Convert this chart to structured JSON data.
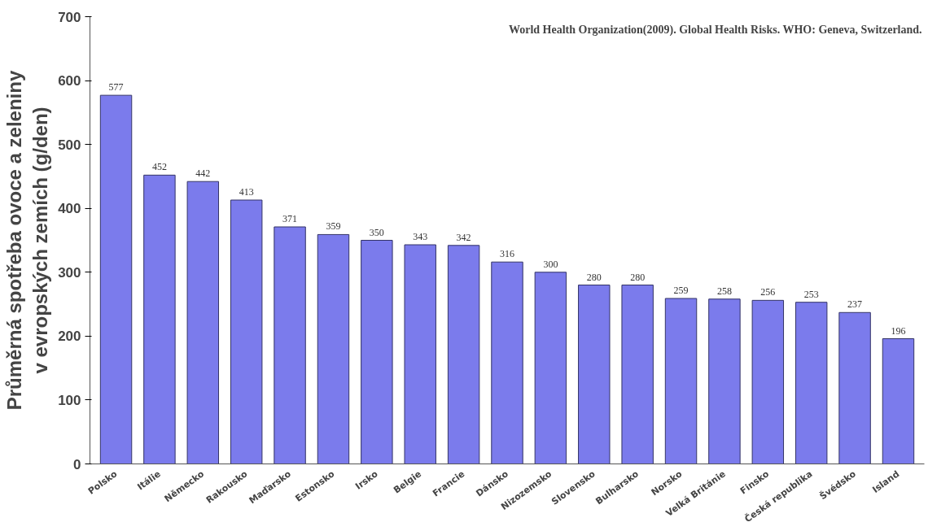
{
  "chart_data": {
    "type": "bar",
    "ylabel": "Průměrná spotřeba ovoce a zeleniny\nv evropských zemích (g/den)",
    "categories": [
      "Polsko",
      "Itálie",
      "Německo",
      "Rakousko",
      "Maďarsko",
      "Estonsko",
      "Irsko",
      "Belgie",
      "Francie",
      "Dánsko",
      "Nizozemsko",
      "Slovensko",
      "Bulharsko",
      "Norsko",
      "Velká Británie",
      "Finsko",
      "Česká republika",
      "Švédsko",
      "Island"
    ],
    "values": [
      577,
      452,
      442,
      413,
      371,
      359,
      350,
      343,
      342,
      316,
      300,
      280,
      280,
      259,
      258,
      256,
      253,
      237,
      196
    ],
    "color": "#7b7bec",
    "ylim": [
      0,
      700
    ],
    "yticks": [
      0,
      100,
      200,
      300,
      400,
      500,
      600,
      700
    ],
    "grid": false,
    "data_labels": true,
    "annotations": [
      "World Health Organization(2009). Global Health Risks. WHO: Geneva, Switzerland."
    ]
  }
}
